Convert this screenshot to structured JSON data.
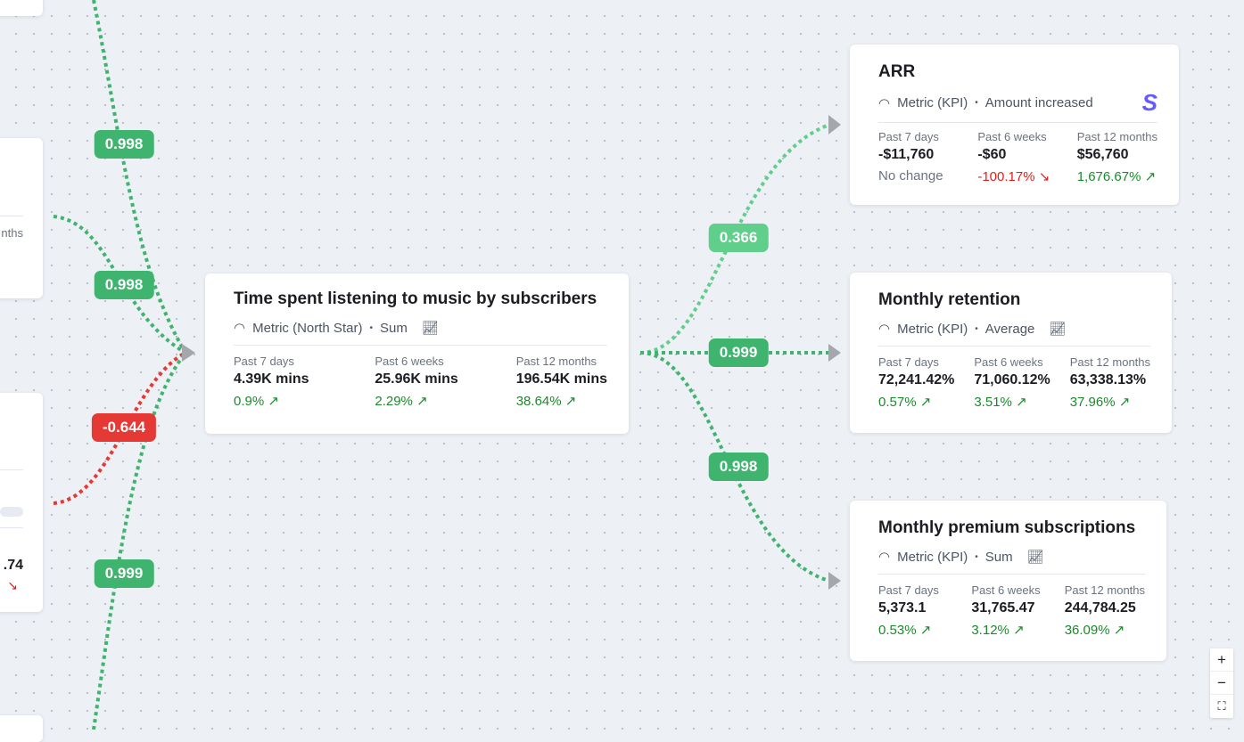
{
  "colors": {
    "positive": "#3fb46e",
    "positive_light": "#5fcf8b",
    "negative": "#e53935",
    "arrow": "#a5a7ad"
  },
  "left_stubs": {
    "card2_label": "nths",
    "card3_value": ".74"
  },
  "edge_labels": {
    "in1": "0.998",
    "in2": "0.998",
    "in3": "-0.644",
    "in4": "0.999",
    "out_arr": "0.366",
    "out_retention": "0.999",
    "out_premium": "0.998"
  },
  "center": {
    "title": "Time spent listening to music by subscribers",
    "type": "Metric (North Star)",
    "agg": "Sum",
    "cols": [
      {
        "label": "Past 7 days",
        "value": "4.39K mins",
        "change": "0.9%"
      },
      {
        "label": "Past 6 weeks",
        "value": "25.96K mins",
        "change": "2.29%"
      },
      {
        "label": "Past 12 months",
        "value": "196.54K mins",
        "change": "38.64%"
      }
    ]
  },
  "arr": {
    "title": "ARR",
    "type": "Metric (KPI)",
    "agg": "Amount increased",
    "source_icon": "stripe-icon",
    "source_glyph": "S",
    "cols": [
      {
        "label": "Past 7 days",
        "value": "-$11,760",
        "change": "No change"
      },
      {
        "label": "Past 6 weeks",
        "value": "-$60",
        "change": "-100.17%"
      },
      {
        "label": "Past 12 months",
        "value": "$56,760",
        "change": "1,676.67%"
      }
    ]
  },
  "retention": {
    "title": "Monthly retention",
    "type": "Metric (KPI)",
    "agg": "Average",
    "cols": [
      {
        "label": "Past 7 days",
        "value": "72,241.42%",
        "change": "0.57%"
      },
      {
        "label": "Past 6 weeks",
        "value": "71,060.12%",
        "change": "3.51%"
      },
      {
        "label": "Past 12 months",
        "value": "63,338.13%",
        "change": "37.96%"
      }
    ]
  },
  "premium": {
    "title": "Monthly premium subscriptions",
    "type": "Metric (KPI)",
    "agg": "Sum",
    "cols": [
      {
        "label": "Past 7 days",
        "value": "5,373.1",
        "change": "0.53%"
      },
      {
        "label": "Past 6 weeks",
        "value": "31,765.47",
        "change": "3.12%"
      },
      {
        "label": "Past 12 months",
        "value": "244,784.25",
        "change": "36.09%"
      }
    ]
  },
  "zoom": {
    "in": "+",
    "out": "−",
    "fit": "⛶"
  }
}
